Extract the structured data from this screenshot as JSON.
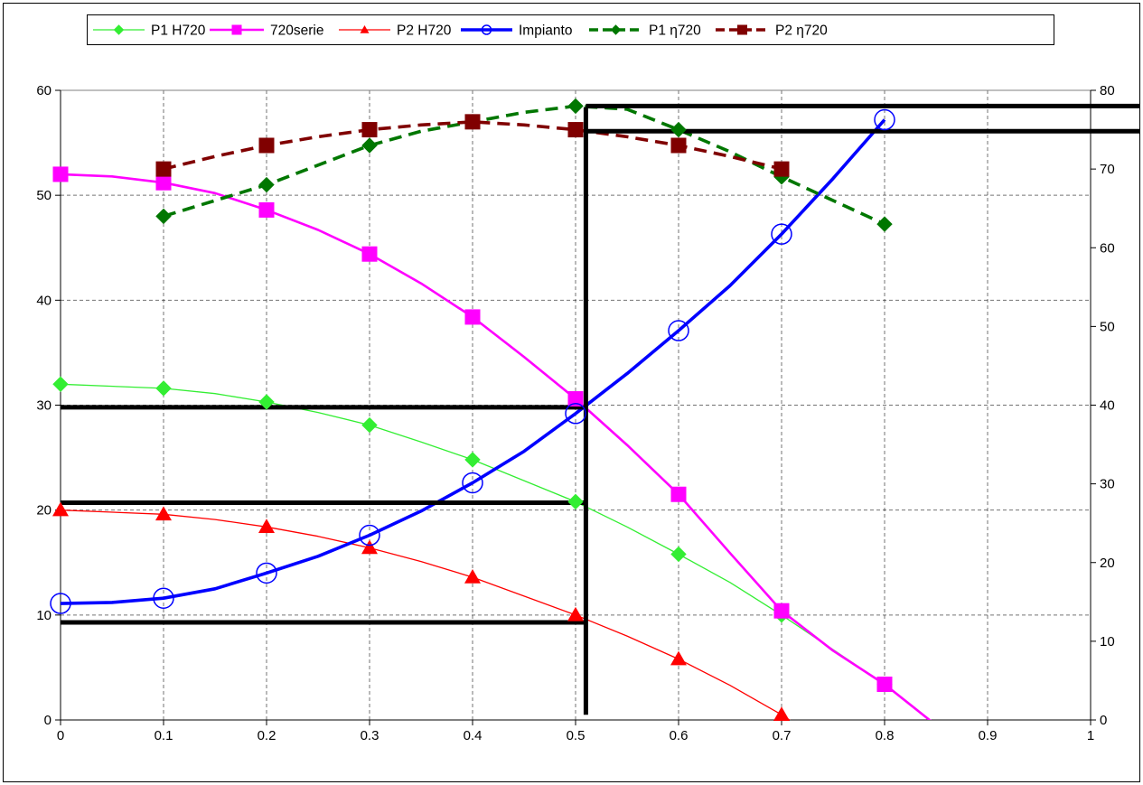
{
  "chart_data": {
    "type": "line",
    "grid": true,
    "legend_position": "top",
    "x_axis": {
      "range": [
        0,
        1
      ],
      "ticks": [
        "0",
        "0.1",
        "0.2",
        "0.3",
        "0.4",
        "0.5",
        "0.6",
        "0.7",
        "0.8",
        "0.9",
        "1"
      ]
    },
    "y_axis_left": {
      "range": [
        0,
        60
      ],
      "ticks": [
        "0",
        "10",
        "20",
        "30",
        "40",
        "50",
        "60"
      ]
    },
    "y_axis_right": {
      "range": [
        0,
        80
      ],
      "ticks": [
        "0",
        "10",
        "20",
        "30",
        "40",
        "50",
        "60",
        "70",
        "80"
      ]
    },
    "series": [
      {
        "name": "P1 H720",
        "color": "#33ee33",
        "marker": "diamond",
        "line": "solid",
        "axis": "left",
        "thickness": "thin",
        "points": [
          [
            0,
            32
          ],
          [
            0.1,
            31.6
          ],
          [
            0.15,
            31.1
          ],
          [
            0.2,
            30.3
          ],
          [
            0.25,
            29.3
          ],
          [
            0.3,
            28.1
          ],
          [
            0.35,
            26.5
          ],
          [
            0.4,
            24.8
          ],
          [
            0.45,
            22.8
          ],
          [
            0.5,
            20.8
          ],
          [
            0.55,
            18.4
          ],
          [
            0.6,
            15.8
          ],
          [
            0.65,
            13.1
          ],
          [
            0.7,
            10
          ],
          [
            0.75,
            6.7
          ],
          [
            0.8,
            3.4
          ],
          [
            0.85,
            -0.5
          ],
          [
            0.86,
            -1.8
          ]
        ],
        "marker_x": [
          0,
          0.1,
          0.2,
          0.3,
          0.4,
          0.5,
          0.6,
          0.7,
          0.8
        ]
      },
      {
        "name": "720serie",
        "color": "#ff00ff",
        "marker": "square",
        "line": "solid",
        "axis": "left",
        "thickness": "medium",
        "points": [
          [
            0,
            52
          ],
          [
            0.05,
            51.8
          ],
          [
            0.1,
            51.2
          ],
          [
            0.15,
            50.2
          ],
          [
            0.2,
            48.6
          ],
          [
            0.25,
            46.7
          ],
          [
            0.3,
            44.4
          ],
          [
            0.35,
            41.6
          ],
          [
            0.4,
            38.4
          ],
          [
            0.45,
            34.6
          ],
          [
            0.5,
            30.6
          ],
          [
            0.55,
            26.2
          ],
          [
            0.6,
            21.5
          ],
          [
            0.65,
            15.9
          ],
          [
            0.7,
            10.4
          ],
          [
            0.75,
            6.6
          ],
          [
            0.8,
            3.4
          ],
          [
            0.85,
            -0.5
          ],
          [
            0.87,
            -1.8
          ]
        ],
        "marker_x": [
          0,
          0.1,
          0.2,
          0.3,
          0.4,
          0.5,
          0.6,
          0.7,
          0.8
        ]
      },
      {
        "name": "P2 H720",
        "color": "#ff0000",
        "marker": "triangle",
        "line": "solid",
        "axis": "left",
        "thickness": "thin",
        "points": [
          [
            0,
            20
          ],
          [
            0.1,
            19.6
          ],
          [
            0.15,
            19.1
          ],
          [
            0.2,
            18.4
          ],
          [
            0.25,
            17.5
          ],
          [
            0.3,
            16.4
          ],
          [
            0.35,
            15.1
          ],
          [
            0.4,
            13.6
          ],
          [
            0.45,
            11.8
          ],
          [
            0.5,
            10
          ],
          [
            0.55,
            8
          ],
          [
            0.6,
            5.8
          ],
          [
            0.65,
            3.3
          ],
          [
            0.7,
            0.5
          ],
          [
            0.72,
            -0.8
          ],
          [
            0.73,
            -1.8
          ]
        ],
        "marker_x": [
          0,
          0.1,
          0.2,
          0.3,
          0.4,
          0.5,
          0.6,
          0.7
        ]
      },
      {
        "name": "Impianto",
        "color": "#0000ff",
        "marker": "open-circle",
        "line": "solid",
        "axis": "left",
        "thickness": "thick",
        "points": [
          [
            0,
            11.1
          ],
          [
            0.05,
            11.2
          ],
          [
            0.1,
            11.6
          ],
          [
            0.15,
            12.5
          ],
          [
            0.2,
            14
          ],
          [
            0.25,
            15.6
          ],
          [
            0.3,
            17.6
          ],
          [
            0.35,
            19.9
          ],
          [
            0.4,
            22.6
          ],
          [
            0.45,
            25.6
          ],
          [
            0.5,
            29.2
          ],
          [
            0.55,
            33
          ],
          [
            0.6,
            37.1
          ],
          [
            0.65,
            41.4
          ],
          [
            0.7,
            46.3
          ],
          [
            0.75,
            51.6
          ],
          [
            0.8,
            57.2
          ]
        ],
        "marker_x": [
          0,
          0.1,
          0.2,
          0.3,
          0.4,
          0.5,
          0.6,
          0.7,
          0.8
        ]
      },
      {
        "name": "P1 η720",
        "color": "#007700",
        "marker": "diamond",
        "line": "dashed",
        "axis": "right",
        "thickness": "thick",
        "points": [
          [
            0.1,
            64
          ],
          [
            0.15,
            66
          ],
          [
            0.2,
            68
          ],
          [
            0.25,
            70.5
          ],
          [
            0.3,
            73
          ],
          [
            0.35,
            74.8
          ],
          [
            0.4,
            76
          ],
          [
            0.45,
            77.2
          ],
          [
            0.5,
            78
          ],
          [
            0.55,
            77.6
          ],
          [
            0.6,
            75
          ],
          [
            0.65,
            72.2
          ],
          [
            0.7,
            69
          ],
          [
            0.75,
            66
          ],
          [
            0.8,
            63
          ]
        ],
        "marker_x": [
          0.1,
          0.2,
          0.3,
          0.4,
          0.5,
          0.6,
          0.7,
          0.8
        ]
      },
      {
        "name": "P2 η720",
        "color": "#800000",
        "marker": "square",
        "line": "dashed",
        "axis": "right",
        "thickness": "thick",
        "points": [
          [
            0.1,
            70
          ],
          [
            0.15,
            71.6
          ],
          [
            0.2,
            73
          ],
          [
            0.25,
            74.1
          ],
          [
            0.3,
            75
          ],
          [
            0.35,
            75.6
          ],
          [
            0.4,
            76
          ],
          [
            0.45,
            75.6
          ],
          [
            0.5,
            75
          ],
          [
            0.55,
            74.1
          ],
          [
            0.6,
            73
          ],
          [
            0.65,
            71.6
          ],
          [
            0.7,
            70
          ]
        ],
        "marker_x": [
          0.1,
          0.2,
          0.3,
          0.4,
          0.5,
          0.6,
          0.7
        ]
      }
    ],
    "reference_lines": [
      {
        "axis": "left",
        "type": "horizontal",
        "y": 29.8,
        "x_from": 0,
        "x_to": 0.51
      },
      {
        "axis": "left",
        "type": "horizontal",
        "y": 20.7,
        "x_from": 0,
        "x_to": 0.51
      },
      {
        "axis": "left",
        "type": "horizontal",
        "y": 9.3,
        "x_from": 0,
        "x_to": 0.51
      },
      {
        "axis": "right",
        "type": "horizontal",
        "y": 78,
        "x_from": 0.51,
        "x_to": 1.05
      },
      {
        "axis": "right",
        "type": "horizontal",
        "y": 74.8,
        "x_from": 0.51,
        "x_to": 1.05
      },
      {
        "axis": "left",
        "type": "vertical",
        "x": 0.51,
        "y_from": 0.5,
        "y_to": 58.4
      }
    ]
  }
}
